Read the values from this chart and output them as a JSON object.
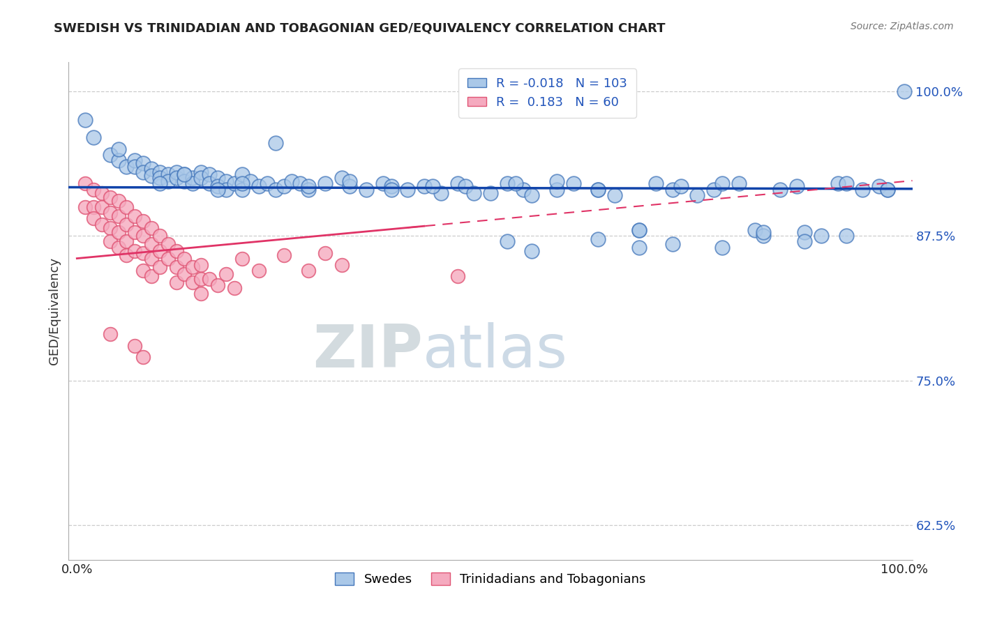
{
  "title": "SWEDISH VS TRINIDADIAN AND TOBAGONIAN GED/EQUIVALENCY CORRELATION CHART",
  "source": "Source: ZipAtlas.com",
  "ylabel": "GED/Equivalency",
  "xlim": [
    -0.01,
    1.01
  ],
  "ylim": [
    0.595,
    1.025
  ],
  "yticks": [
    0.625,
    0.75,
    0.875,
    1.0
  ],
  "ytick_labels": [
    "62.5%",
    "75.0%",
    "87.5%",
    "100.0%"
  ],
  "blue_R": -0.018,
  "blue_N": 103,
  "pink_R": 0.183,
  "pink_N": 60,
  "blue_color": "#aac8e8",
  "pink_color": "#f5aabf",
  "blue_edge": "#4477bb",
  "pink_edge": "#e05575",
  "blue_line_color": "#1144aa",
  "pink_line_color": "#e03366",
  "watermark_color": "#c8d8e8",
  "watermark": "ZIPatlas",
  "legend_swedes": "Swedes",
  "legend_trinidadians": "Trinidadians and Tobagonians",
  "blue_x": [
    0.01,
    0.02,
    0.04,
    0.05,
    0.06,
    0.07,
    0.07,
    0.08,
    0.08,
    0.09,
    0.09,
    0.1,
    0.1,
    0.11,
    0.11,
    0.12,
    0.12,
    0.13,
    0.13,
    0.14,
    0.14,
    0.15,
    0.15,
    0.16,
    0.16,
    0.17,
    0.17,
    0.18,
    0.18,
    0.19,
    0.2,
    0.2,
    0.21,
    0.22,
    0.23,
    0.24,
    0.25,
    0.26,
    0.27,
    0.28,
    0.3,
    0.32,
    0.33,
    0.35,
    0.37,
    0.38,
    0.4,
    0.42,
    0.44,
    0.46,
    0.47,
    0.5,
    0.52,
    0.54,
    0.55,
    0.58,
    0.6,
    0.63,
    0.65,
    0.68,
    0.7,
    0.72,
    0.75,
    0.77,
    0.8,
    0.82,
    0.85,
    0.87,
    0.9,
    0.92,
    0.95,
    0.97,
    1.0,
    0.05,
    0.1,
    0.13,
    0.17,
    0.2,
    0.24,
    0.28,
    0.33,
    0.38,
    0.43,
    0.48,
    0.53,
    0.58,
    0.63,
    0.68,
    0.73,
    0.78,
    0.83,
    0.88,
    0.93,
    0.98,
    0.52,
    0.55,
    0.63,
    0.68,
    0.72,
    0.78,
    0.83,
    0.88,
    0.93,
    0.98
  ],
  "blue_y": [
    0.975,
    0.96,
    0.945,
    0.94,
    0.935,
    0.94,
    0.935,
    0.938,
    0.93,
    0.933,
    0.927,
    0.93,
    0.925,
    0.928,
    0.922,
    0.93,
    0.925,
    0.928,
    0.922,
    0.925,
    0.92,
    0.93,
    0.925,
    0.928,
    0.92,
    0.925,
    0.918,
    0.922,
    0.915,
    0.92,
    0.928,
    0.915,
    0.922,
    0.918,
    0.92,
    0.915,
    0.918,
    0.922,
    0.92,
    0.915,
    0.92,
    0.925,
    0.918,
    0.915,
    0.92,
    0.918,
    0.915,
    0.918,
    0.912,
    0.92,
    0.918,
    0.912,
    0.92,
    0.915,
    0.91,
    0.915,
    0.92,
    0.915,
    0.91,
    0.88,
    0.92,
    0.915,
    0.91,
    0.915,
    0.92,
    0.88,
    0.915,
    0.918,
    0.875,
    0.92,
    0.915,
    0.918,
    1.0,
    0.95,
    0.92,
    0.928,
    0.915,
    0.92,
    0.955,
    0.918,
    0.922,
    0.915,
    0.918,
    0.912,
    0.92,
    0.922,
    0.915,
    0.88,
    0.918,
    0.92,
    0.875,
    0.878,
    0.92,
    0.915,
    0.87,
    0.862,
    0.872,
    0.865,
    0.868,
    0.865,
    0.878,
    0.87,
    0.875,
    0.915
  ],
  "pink_x": [
    0.01,
    0.01,
    0.02,
    0.02,
    0.02,
    0.03,
    0.03,
    0.03,
    0.04,
    0.04,
    0.04,
    0.04,
    0.05,
    0.05,
    0.05,
    0.05,
    0.06,
    0.06,
    0.06,
    0.06,
    0.07,
    0.07,
    0.07,
    0.08,
    0.08,
    0.08,
    0.08,
    0.09,
    0.09,
    0.09,
    0.09,
    0.1,
    0.1,
    0.1,
    0.11,
    0.11,
    0.12,
    0.12,
    0.12,
    0.13,
    0.13,
    0.14,
    0.14,
    0.15,
    0.15,
    0.15,
    0.16,
    0.17,
    0.18,
    0.19,
    0.2,
    0.22,
    0.25,
    0.28,
    0.3,
    0.32,
    0.04,
    0.07,
    0.08,
    0.46
  ],
  "pink_y": [
    0.92,
    0.9,
    0.915,
    0.9,
    0.89,
    0.912,
    0.9,
    0.885,
    0.908,
    0.895,
    0.882,
    0.87,
    0.905,
    0.892,
    0.878,
    0.865,
    0.9,
    0.885,
    0.87,
    0.858,
    0.892,
    0.878,
    0.862,
    0.888,
    0.875,
    0.86,
    0.845,
    0.882,
    0.868,
    0.855,
    0.84,
    0.875,
    0.862,
    0.848,
    0.868,
    0.855,
    0.862,
    0.848,
    0.835,
    0.855,
    0.842,
    0.848,
    0.835,
    0.85,
    0.838,
    0.825,
    0.838,
    0.832,
    0.842,
    0.83,
    0.855,
    0.845,
    0.858,
    0.845,
    0.86,
    0.85,
    0.79,
    0.78,
    0.77,
    0.84
  ]
}
